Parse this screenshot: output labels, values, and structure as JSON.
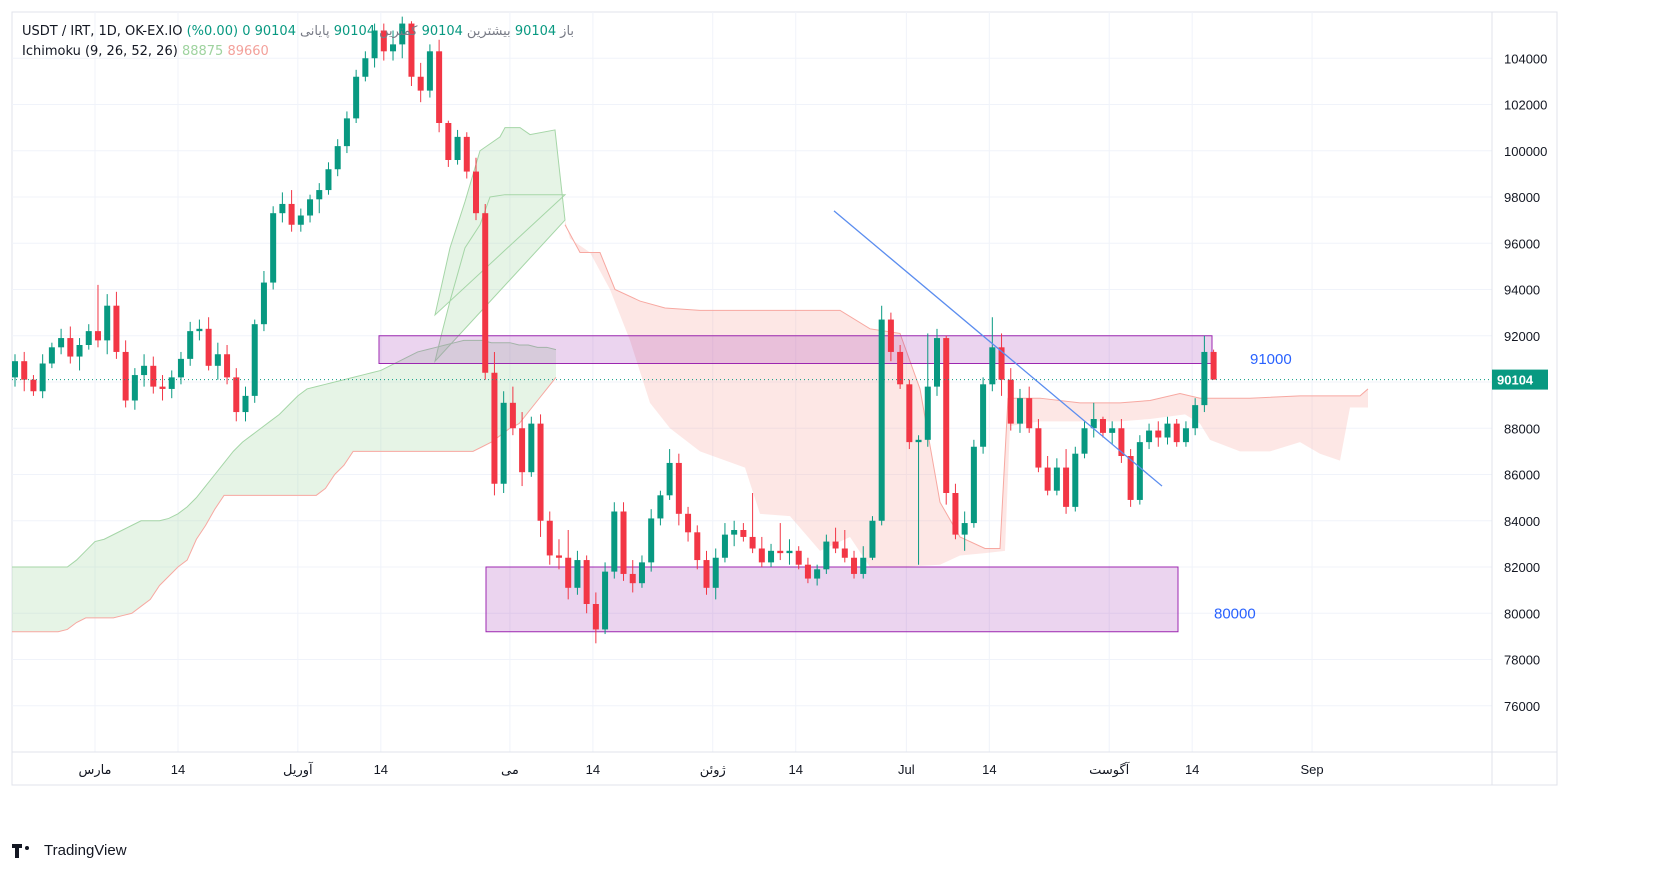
{
  "legend": {
    "symbol": "USDT / IRT, 1D, OK-EX.IO",
    "open_label": "باز",
    "open": "90104",
    "high_label": "بیشترین",
    "high": "90104",
    "low_label": "کمترین",
    "low": "90104",
    "close_label": "پایانی",
    "close": "90104",
    "change": "0 (0.00%)",
    "indicator": "Ichimoku (9, 26, 52, 26)",
    "ind_val1": "88875",
    "ind_val2": "89660"
  },
  "footer": {
    "brand": "TradingView"
  },
  "colors": {
    "up": "#089981",
    "down": "#f23645",
    "cloud_green": "#a5d6a7",
    "cloud_red": "#f7a8a1",
    "zone": "#9c27b0",
    "trendline": "#5b8def",
    "label_blue": "#2962ff",
    "price_tag": "#089981"
  },
  "chart_data": {
    "type": "candlestick",
    "symbol": "USDT / IRT",
    "timeframe": "1D",
    "ylim": [
      74000,
      106000
    ],
    "y_ticks": [
      76000,
      78000,
      80000,
      82000,
      84000,
      86000,
      88000,
      90000,
      92000,
      94000,
      96000,
      98000,
      100000,
      102000,
      104000
    ],
    "x_ticks": [
      "مارس",
      "14",
      "آوریل",
      "14",
      "می",
      "14",
      "ژوئن",
      "14",
      "Jul",
      "14",
      "آگوست",
      "14",
      "Sep"
    ],
    "x_tick_index": [
      0,
      9,
      22,
      31,
      45,
      54,
      67,
      76,
      88,
      97,
      110,
      119,
      132
    ],
    "last_price": "90104",
    "annotations": [
      {
        "label": "91000",
        "type": "zone",
        "y_range": [
          90800,
          92000
        ]
      },
      {
        "label": "80000",
        "type": "zone",
        "y_range": [
          79200,
          82000
        ]
      }
    ],
    "trendline": {
      "from": {
        "date": "14",
        "value": 97400
      },
      "to": {
        "date": "آگوست",
        "value": 85500
      }
    },
    "candles": [
      [
        90200,
        91200,
        89800,
        90900
      ],
      [
        90900,
        91300,
        89600,
        90100
      ],
      [
        90100,
        90300,
        89400,
        89600
      ],
      [
        89600,
        91200,
        89300,
        90800
      ],
      [
        90800,
        91700,
        90600,
        91500
      ],
      [
        91500,
        92300,
        91200,
        91900
      ],
      [
        91900,
        92400,
        90800,
        91100
      ],
      [
        91100,
        91900,
        90500,
        91600
      ],
      [
        91600,
        92500,
        91400,
        92200
      ],
      [
        92200,
        94200,
        91500,
        91800
      ],
      [
        91800,
        93800,
        91200,
        93300
      ],
      [
        93300,
        93900,
        91000,
        91300
      ],
      [
        91300,
        91800,
        88900,
        89200
      ],
      [
        89200,
        90600,
        88800,
        90300
      ],
      [
        90300,
        91200,
        89800,
        90700
      ],
      [
        90700,
        91100,
        89500,
        89800
      ],
      [
        89800,
        90300,
        89200,
        89700
      ],
      [
        89700,
        90500,
        89300,
        90200
      ],
      [
        90200,
        91300,
        89900,
        91000
      ],
      [
        91000,
        92600,
        90700,
        92200
      ],
      [
        92200,
        92700,
        91800,
        92300
      ],
      [
        92300,
        92800,
        90500,
        90700
      ],
      [
        90700,
        91700,
        90100,
        91200
      ],
      [
        91200,
        91600,
        89900,
        90200
      ],
      [
        90200,
        90600,
        88300,
        88700
      ],
      [
        88700,
        89800,
        88300,
        89400
      ],
      [
        89400,
        92700,
        89100,
        92500
      ],
      [
        92500,
        94800,
        92200,
        94300
      ],
      [
        94300,
        97600,
        94000,
        97300
      ],
      [
        97300,
        98200,
        96900,
        97700
      ],
      [
        97700,
        98300,
        96500,
        96800
      ],
      [
        96800,
        97500,
        96500,
        97200
      ],
      [
        97200,
        98100,
        96900,
        97900
      ],
      [
        97900,
        98600,
        97300,
        98300
      ],
      [
        98300,
        99500,
        98100,
        99200
      ],
      [
        99200,
        100500,
        98900,
        100200
      ],
      [
        100200,
        101700,
        99900,
        101400
      ],
      [
        101400,
        103500,
        101200,
        103200
      ],
      [
        103200,
        104300,
        103000,
        104000
      ],
      [
        104000,
        105500,
        103600,
        105200
      ],
      [
        105200,
        105500,
        103900,
        104300
      ],
      [
        104300,
        105200,
        103900,
        104600
      ],
      [
        104600,
        105800,
        104000,
        105500
      ],
      [
        105500,
        105600,
        102800,
        103200
      ],
      [
        103200,
        103800,
        102100,
        102600
      ],
      [
        102600,
        104600,
        102300,
        104300
      ],
      [
        104300,
        104800,
        100800,
        101200
      ],
      [
        101200,
        101300,
        99300,
        99600
      ],
      [
        99600,
        100900,
        99400,
        100600
      ],
      [
        100600,
        100800,
        98800,
        99100
      ],
      [
        99100,
        99700,
        97000,
        97300
      ],
      [
        97300,
        97700,
        90100,
        90400
      ],
      [
        90400,
        91300,
        85100,
        85600
      ],
      [
        85600,
        89600,
        85200,
        89100
      ],
      [
        89100,
        89800,
        87700,
        88000
      ],
      [
        88000,
        88700,
        85500,
        86100
      ],
      [
        86100,
        88500,
        85900,
        88200
      ],
      [
        88200,
        88600,
        83300,
        84000
      ],
      [
        84000,
        84400,
        82100,
        82500
      ],
      [
        82500,
        83200,
        81900,
        82400
      ],
      [
        82400,
        83600,
        80600,
        81100
      ],
      [
        81100,
        82700,
        80800,
        82300
      ],
      [
        82300,
        82500,
        80000,
        80400
      ],
      [
        80400,
        80900,
        78700,
        79300
      ],
      [
        79300,
        82200,
        79100,
        81800
      ],
      [
        81800,
        84800,
        81500,
        84400
      ],
      [
        84400,
        84800,
        81400,
        81700
      ],
      [
        81700,
        82300,
        80900,
        81300
      ],
      [
        81300,
        82500,
        81100,
        82200
      ],
      [
        82200,
        84500,
        81800,
        84100
      ],
      [
        84100,
        85300,
        83800,
        85100
      ],
      [
        85100,
        87100,
        84900,
        86500
      ],
      [
        86500,
        86900,
        83800,
        84300
      ],
      [
        84300,
        84600,
        83100,
        83500
      ],
      [
        83500,
        83800,
        81900,
        82300
      ],
      [
        82300,
        82700,
        80800,
        81100
      ],
      [
        81100,
        82800,
        80600,
        82400
      ],
      [
        82400,
        83900,
        82200,
        83400
      ],
      [
        83400,
        84000,
        82900,
        83600
      ],
      [
        83600,
        83900,
        83100,
        83300
      ],
      [
        83300,
        85200,
        82600,
        82800
      ],
      [
        82800,
        83300,
        82000,
        82200
      ],
      [
        82200,
        83000,
        82000,
        82700
      ],
      [
        82700,
        83900,
        82300,
        82600
      ],
      [
        82600,
        83200,
        82100,
        82700
      ],
      [
        82700,
        82900,
        81900,
        82100
      ],
      [
        82100,
        82400,
        81300,
        81500
      ],
      [
        81500,
        82100,
        81200,
        81900
      ],
      [
        81900,
        83400,
        81700,
        83100
      ],
      [
        83100,
        83700,
        82600,
        82800
      ],
      [
        82800,
        83600,
        82200,
        82400
      ],
      [
        82400,
        82700,
        81500,
        81700
      ],
      [
        81700,
        82900,
        81500,
        82400
      ],
      [
        82400,
        84200,
        82300,
        84000
      ],
      [
        84000,
        93300,
        83800,
        92700
      ],
      [
        92700,
        93000,
        90900,
        91300
      ],
      [
        91300,
        91600,
        89700,
        89900
      ],
      [
        89900,
        90100,
        87100,
        87400
      ],
      [
        87400,
        87700,
        82100,
        87500
      ],
      [
        87500,
        92100,
        87200,
        89800
      ],
      [
        89800,
        92300,
        89400,
        91900
      ],
      [
        91900,
        92000,
        84700,
        85200
      ],
      [
        85200,
        85600,
        83200,
        83400
      ],
      [
        83400,
        84400,
        82700,
        83900
      ],
      [
        83900,
        87500,
        83700,
        87200
      ],
      [
        87200,
        90200,
        86900,
        89900
      ],
      [
        89900,
        92800,
        89600,
        91500
      ],
      [
        91500,
        92100,
        89400,
        90100
      ],
      [
        90100,
        90600,
        87900,
        88200
      ],
      [
        88200,
        89700,
        87800,
        89300
      ],
      [
        89300,
        89800,
        87800,
        88000
      ],
      [
        88000,
        88400,
        86100,
        86300
      ],
      [
        86300,
        86800,
        85100,
        85300
      ],
      [
        85300,
        86700,
        85100,
        86300
      ],
      [
        86300,
        87100,
        84300,
        84600
      ],
      [
        84600,
        87200,
        84400,
        86900
      ],
      [
        86900,
        88300,
        86700,
        88000
      ],
      [
        88000,
        89100,
        87600,
        88400
      ],
      [
        88400,
        88500,
        87600,
        87800
      ],
      [
        87800,
        88300,
        87300,
        88000
      ],
      [
        88000,
        88400,
        86500,
        86800
      ],
      [
        86800,
        87100,
        84600,
        84900
      ],
      [
        84900,
        87700,
        84700,
        87400
      ],
      [
        87400,
        88200,
        87100,
        87900
      ],
      [
        87900,
        88300,
        87200,
        87600
      ],
      [
        87600,
        88500,
        87300,
        88200
      ],
      [
        88200,
        88400,
        87200,
        87400
      ],
      [
        87400,
        88300,
        87200,
        88000
      ],
      [
        88000,
        89300,
        87700,
        89000
      ],
      [
        89000,
        92000,
        88700,
        91300
      ],
      [
        91300,
        91400,
        90100,
        90104
      ]
    ],
    "ichimoku_cloud": [
      {
        "from": 0,
        "to": 34,
        "lead_a": [
          82000,
          82000,
          82000,
          82000,
          82000,
          82000,
          82000,
          82300,
          82700,
          83100,
          83200,
          83400,
          83600,
          83800,
          84000,
          84000,
          84000,
          84100,
          84300,
          84600,
          85000,
          85500,
          86000,
          86500,
          87000,
          87400,
          87700,
          88000,
          88300,
          88600,
          89000,
          89400,
          89700,
          89800,
          89900,
          90000,
          90100,
          90200,
          90300,
          90400,
          90500,
          90700,
          90900,
          91100,
          91300,
          91400,
          91500,
          91600,
          91700,
          91800,
          91800,
          91800,
          91700,
          91700,
          91700,
          91600,
          91600,
          91500,
          91500,
          91400
        ],
        "lead_b": [
          79200,
          79200,
          79200,
          79200,
          79200,
          79200,
          79300,
          79600,
          79800,
          79800,
          79800,
          79800,
          79900,
          80000,
          80300,
          80600,
          81200,
          81600,
          82000,
          82300,
          83200,
          83800,
          84500,
          85100,
          85100,
          85100,
          85100,
          85100,
          85100,
          85100,
          85100,
          85100,
          85100,
          85100,
          85400,
          86000,
          86400,
          87000,
          87000,
          87000,
          87000,
          87000,
          87000,
          87000,
          87000,
          87000,
          87000,
          87000,
          87000,
          87000,
          87000,
          87200,
          87400,
          87700,
          88000,
          88200,
          88700,
          89200,
          89700,
          90200
        ]
      }
    ]
  }
}
